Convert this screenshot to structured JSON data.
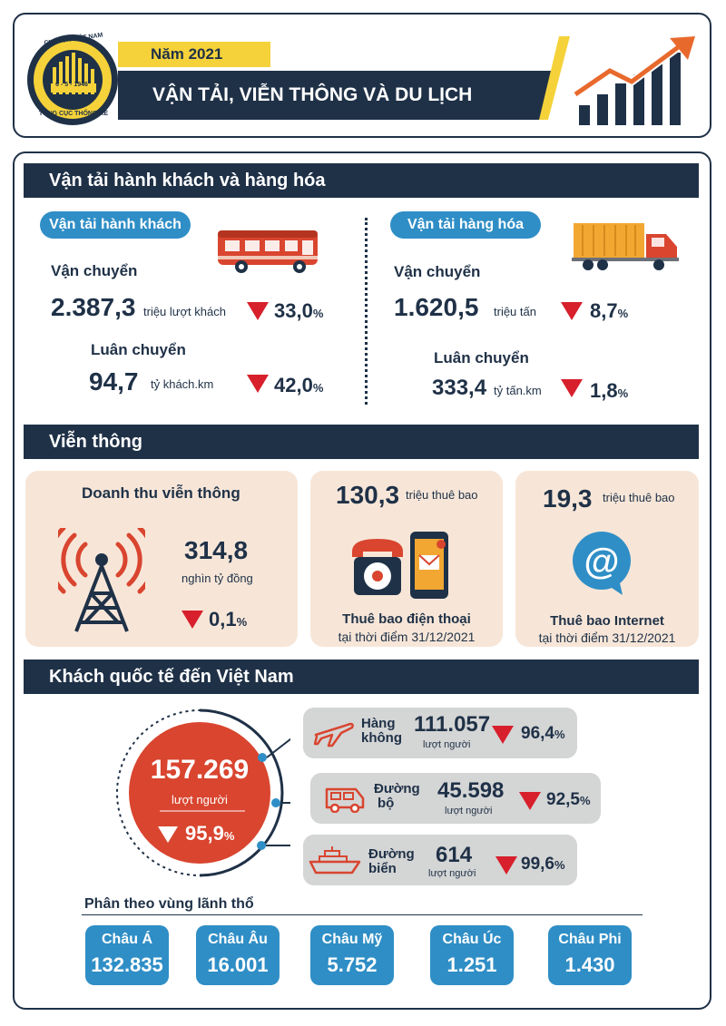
{
  "header": {
    "logo_text_top": "CHXHCN VIỆT NAM",
    "logo_date": "6 - 5 - 1946",
    "logo_text_bottom": "TỔNG CỤC THỐNG KÊ",
    "year": "Năm 2021",
    "title": "VẬN TẢI, VIỄN THÔNG VÀ DU LỊCH"
  },
  "transport": {
    "section_title": "Vận tải hành khách và hàng hóa",
    "passenger": {
      "pill": "Vận tải hành khách",
      "carry_label": "Vận chuyển",
      "carry_value": "2.387,3",
      "carry_unit": "triệu lượt khách",
      "carry_change": "33,0",
      "rotation_label": "Luân chuyển",
      "rotation_value": "94,7",
      "rotation_unit": "tỷ khách.km",
      "rotation_change": "42,0"
    },
    "cargo": {
      "pill": "Vận tải hàng hóa",
      "carry_label": "Vận chuyển",
      "carry_value": "1.620,5",
      "carry_unit": "triệu tấn",
      "carry_change": "8,7",
      "rotation_label": "Luân chuyển",
      "rotation_value": "333,4",
      "rotation_unit": "tỷ tấn.km",
      "rotation_change": "1,8"
    },
    "percent_sign": "%"
  },
  "telecom": {
    "section_title": "Viễn thông",
    "revenue": {
      "title": "Doanh thu viễn thông",
      "value": "314,8",
      "unit": "nghìn tỷ đồng",
      "change": "0,1"
    },
    "phone": {
      "value": "130,3",
      "unit": "triệu thuê bao",
      "title": "Thuê bao điện thoại",
      "subtitle": "tại thời điểm 31/12/2021"
    },
    "internet": {
      "value": "19,3",
      "unit": "triệu thuê bao",
      "title": "Thuê bao Internet",
      "subtitle": "tại thời điểm 31/12/2021"
    }
  },
  "tourism": {
    "section_title": "Khách quốc tế đến Việt Nam",
    "total_value": "157.269",
    "total_unit": "lượt người",
    "total_change": "95,9",
    "routes": [
      {
        "name_1": "Hàng",
        "name_2": "không",
        "value": "111.057",
        "unit": "lượt người",
        "change": "96,4"
      },
      {
        "name_1": "Đường",
        "name_2": "bộ",
        "value": "45.598",
        "unit": "lượt người",
        "change": "92,5"
      },
      {
        "name_1": "Đường",
        "name_2": "biển",
        "value": "614",
        "unit": "lượt người",
        "change": "99,6"
      }
    ],
    "regions_title": "Phân theo vùng lãnh thổ",
    "regions": [
      {
        "name": "Châu Á",
        "value": "132.835"
      },
      {
        "name": "Châu Âu",
        "value": "16.001"
      },
      {
        "name": "Châu Mỹ",
        "value": "5.752"
      },
      {
        "name": "Châu Úc",
        "value": "1.251"
      },
      {
        "name": "Châu Phi",
        "value": "1.430"
      }
    ]
  },
  "colors": {
    "navy": "#1f3147",
    "accent_yellow": "#f5d23a",
    "accent_orange": "#e8692c",
    "blue": "#2f8ec6",
    "down_red": "#d7202c"
  }
}
